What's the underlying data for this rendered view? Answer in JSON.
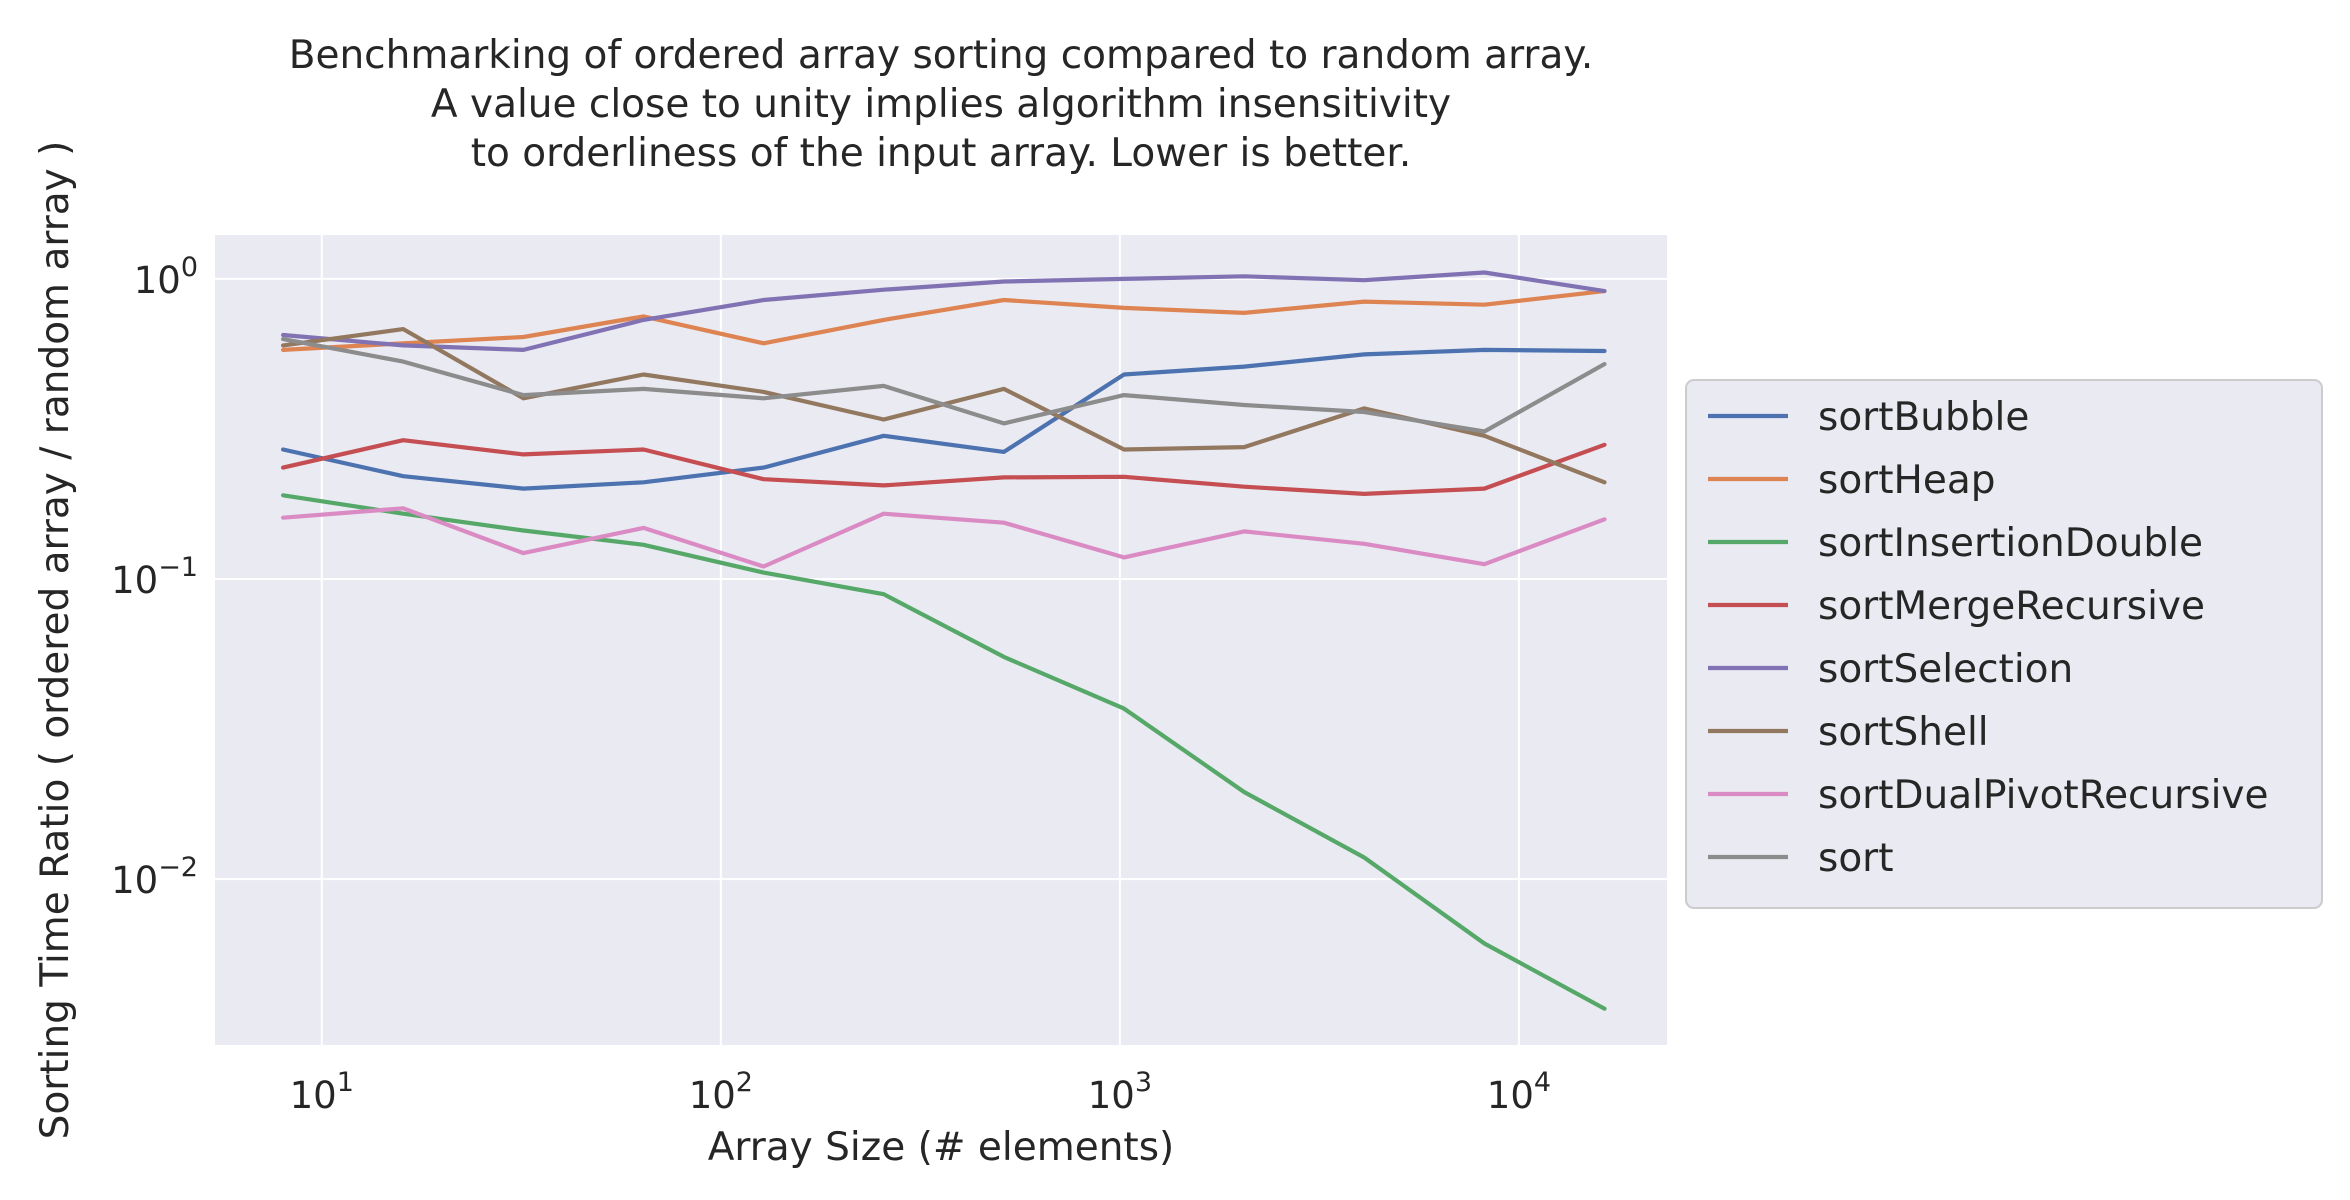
{
  "chart_data": {
    "type": "line",
    "title_lines": [
      "Benchmarking of ordered array sorting compared to random array.",
      "A value close to unity implies algorithm insensitivity",
      "to orderliness of the input array. Lower is better."
    ],
    "xlabel": "Array Size (# elements)",
    "ylabel": "Sorting Time Ratio ( ordered array / random array )",
    "xscale": "log",
    "yscale": "log",
    "xlim": [
      5.4,
      23500
    ],
    "ylim": [
      0.0028,
      1.4
    ],
    "xticks": [
      {
        "value": 10,
        "base": "10",
        "exp": "1"
      },
      {
        "value": 100,
        "base": "10",
        "exp": "2"
      },
      {
        "value": 1000,
        "base": "10",
        "exp": "3"
      },
      {
        "value": 10000,
        "base": "10",
        "exp": "4"
      }
    ],
    "yticks": [
      {
        "value": 1,
        "base": "10",
        "exp": "0"
      },
      {
        "value": 0.1,
        "base": "10",
        "exp": "−1"
      },
      {
        "value": 0.01,
        "base": "10",
        "exp": "−2"
      }
    ],
    "grid": true,
    "legend_position": "right, outside plot",
    "x": [
      8,
      16,
      32,
      64,
      128,
      256,
      512,
      1024,
      2048,
      4096,
      8192,
      16384
    ],
    "series": [
      {
        "name": "sortBubble",
        "color": "#4c72b0",
        "values": [
          0.27,
          0.22,
          0.2,
          0.21,
          0.235,
          0.3,
          0.265,
          0.48,
          0.51,
          0.56,
          0.58,
          0.575
        ]
      },
      {
        "name": "sortHeap",
        "color": "#dd8452",
        "values": [
          0.58,
          0.61,
          0.64,
          0.75,
          0.61,
          0.73,
          0.85,
          0.8,
          0.77,
          0.84,
          0.82,
          0.91
        ]
      },
      {
        "name": "sortInsertionDouble",
        "color": "#55a868",
        "values": [
          0.19,
          0.165,
          0.145,
          0.13,
          0.105,
          0.089,
          0.055,
          0.037,
          0.0195,
          0.0118,
          0.0061,
          0.0037
        ]
      },
      {
        "name": "sortMergeRecursive",
        "color": "#c44e52",
        "values": [
          0.235,
          0.29,
          0.26,
          0.27,
          0.215,
          0.205,
          0.218,
          0.219,
          0.203,
          0.192,
          0.2,
          0.28
        ]
      },
      {
        "name": "sortSelection",
        "color": "#8172b3",
        "values": [
          0.65,
          0.6,
          0.58,
          0.73,
          0.85,
          0.92,
          0.98,
          1.0,
          1.02,
          0.99,
          1.05,
          0.91
        ]
      },
      {
        "name": "sortShell",
        "color": "#937860",
        "values": [
          0.6,
          0.68,
          0.4,
          0.48,
          0.42,
          0.34,
          0.43,
          0.27,
          0.275,
          0.37,
          0.3,
          0.21
        ]
      },
      {
        "name": "sortDualPivotRecursive",
        "color": "#da8bc3",
        "values": [
          0.16,
          0.172,
          0.122,
          0.148,
          0.11,
          0.165,
          0.154,
          0.118,
          0.144,
          0.131,
          0.112,
          0.158
        ]
      },
      {
        "name": "sort",
        "color": "#8c8c8c",
        "values": [
          0.63,
          0.53,
          0.41,
          0.43,
          0.4,
          0.44,
          0.33,
          0.41,
          0.38,
          0.36,
          0.31,
          0.52
        ]
      }
    ]
  }
}
